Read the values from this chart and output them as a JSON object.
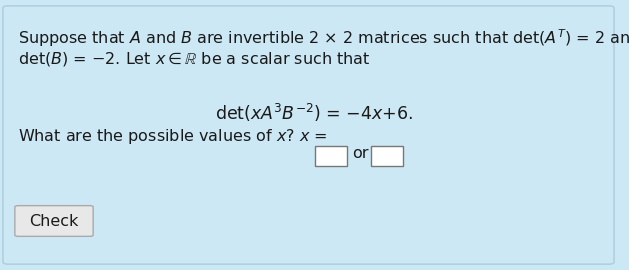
{
  "bg_color": "#cce8f4",
  "border_color": "#aaccdd",
  "text_color": "#1a1a1a",
  "fontsize_main": 11.5,
  "fontsize_eq": 12.5,
  "fontsize_check": 11.5,
  "figsize": [
    6.29,
    2.7
  ],
  "dpi": 100
}
